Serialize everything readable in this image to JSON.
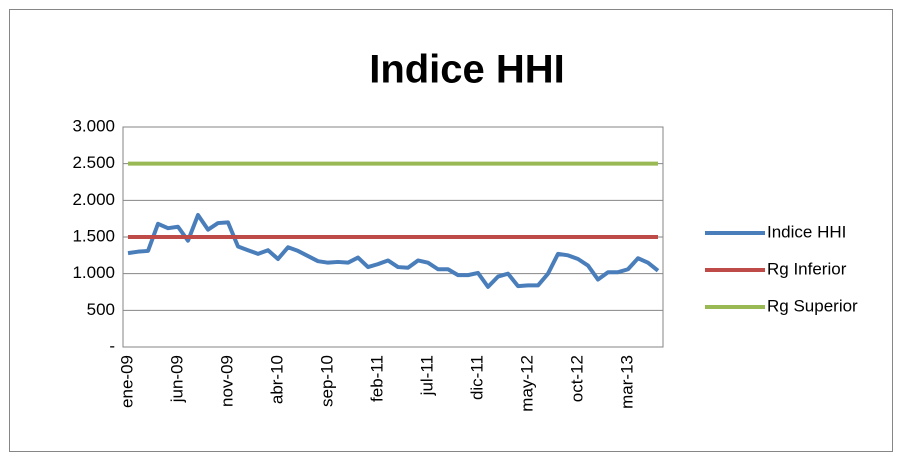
{
  "chart_data": {
    "type": "line",
    "title": "Indice HHI",
    "categories": [
      "ene-09",
      null,
      null,
      null,
      null,
      "jun-09",
      null,
      null,
      null,
      null,
      "nov-09",
      null,
      null,
      null,
      null,
      "abr-10",
      null,
      null,
      null,
      null,
      "sep-10",
      null,
      null,
      null,
      null,
      "feb-11",
      null,
      null,
      null,
      null,
      "jul-11",
      null,
      null,
      null,
      null,
      "dic-11",
      null,
      null,
      null,
      null,
      "may-12",
      null,
      null,
      null,
      null,
      "oct-12",
      null,
      null,
      null,
      null,
      "mar-13",
      null,
      null,
      null
    ],
    "series": [
      {
        "name": "Indice HHI",
        "color": "#4a7ebb",
        "values": [
          1280,
          1300,
          1310,
          1680,
          1620,
          1640,
          1450,
          1800,
          1600,
          1690,
          1700,
          1370,
          1320,
          1270,
          1320,
          1200,
          1360,
          1310,
          1240,
          1170,
          1150,
          1160,
          1150,
          1220,
          1090,
          1130,
          1180,
          1090,
          1080,
          1180,
          1150,
          1060,
          1060,
          980,
          980,
          1010,
          820,
          960,
          1000,
          830,
          840,
          840,
          1000,
          1270,
          1250,
          1200,
          1110,
          920,
          1020,
          1020,
          1060,
          1210,
          1150,
          1040
        ]
      },
      {
        "name": "Rg Inferior",
        "color": "#be4b48",
        "values": [
          1500,
          1500,
          1500,
          1500,
          1500,
          1500,
          1500,
          1500,
          1500,
          1500,
          1500,
          1500,
          1500,
          1500,
          1500,
          1500,
          1500,
          1500,
          1500,
          1500,
          1500,
          1500,
          1500,
          1500,
          1500,
          1500,
          1500,
          1500,
          1500,
          1500,
          1500,
          1500,
          1500,
          1500,
          1500,
          1500,
          1500,
          1500,
          1500,
          1500,
          1500,
          1500,
          1500,
          1500,
          1500,
          1500,
          1500,
          1500,
          1500,
          1500,
          1500,
          1500,
          1500,
          1500
        ]
      },
      {
        "name": "Rg Superior",
        "color": "#98b954",
        "values": [
          2500,
          2500,
          2500,
          2500,
          2500,
          2500,
          2500,
          2500,
          2500,
          2500,
          2500,
          2500,
          2500,
          2500,
          2500,
          2500,
          2500,
          2500,
          2500,
          2500,
          2500,
          2500,
          2500,
          2500,
          2500,
          2500,
          2500,
          2500,
          2500,
          2500,
          2500,
          2500,
          2500,
          2500,
          2500,
          2500,
          2500,
          2500,
          2500,
          2500,
          2500,
          2500,
          2500,
          2500,
          2500,
          2500,
          2500,
          2500,
          2500,
          2500,
          2500,
          2500,
          2500,
          2500
        ]
      }
    ],
    "ylim": [
      0,
      3000
    ],
    "yticks": [
      {
        "value": 0,
        "label": "-"
      },
      500,
      {
        "value": 1000,
        "label": "1.000"
      },
      {
        "value": 1500,
        "label": "1.500"
      },
      {
        "value": 2000,
        "label": "2.000"
      },
      {
        "value": 2500,
        "label": "2.500"
      },
      {
        "value": 3000,
        "label": "3.000"
      }
    ],
    "grid": true,
    "legend": "right"
  }
}
